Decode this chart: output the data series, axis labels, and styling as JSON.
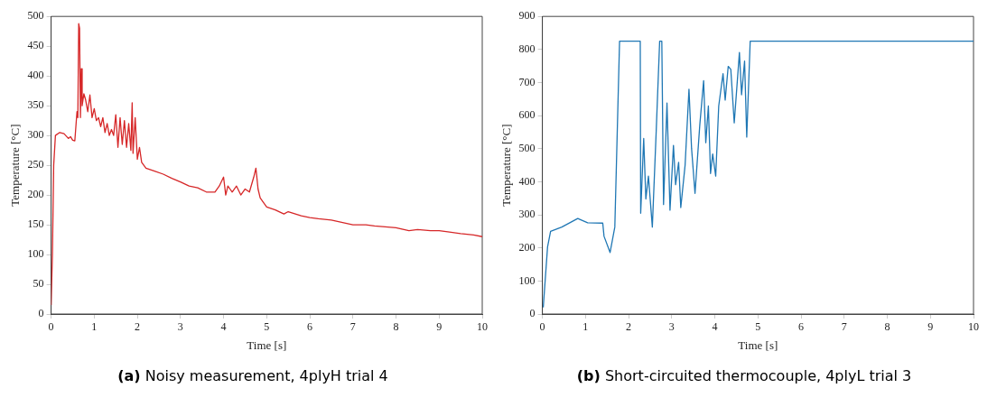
{
  "chart_data": [
    {
      "type": "line",
      "title": "(a) Noisy measurement, 4plyH trial 4",
      "xlabel": "Time [s]",
      "ylabel": "Temperature [°C]",
      "xlim": [
        0,
        10
      ],
      "xticks": [
        0,
        1,
        2,
        3,
        4,
        5,
        6,
        7,
        8,
        9,
        10
      ],
      "ylim": [
        0,
        500
      ],
      "yticks": [
        0,
        50,
        100,
        150,
        200,
        250,
        300,
        350,
        400,
        450,
        500
      ],
      "grid": false,
      "legend": false,
      "series": [
        {
          "color": "#d62728",
          "x": [
            0,
            0.03,
            0.06,
            0.1,
            0.2,
            0.3,
            0.4,
            0.45,
            0.5,
            0.55,
            0.6,
            0.62,
            0.64,
            0.66,
            0.68,
            0.7,
            0.72,
            0.76,
            0.8,
            0.85,
            0.9,
            0.95,
            1.0,
            1.05,
            1.1,
            1.15,
            1.2,
            1.25,
            1.3,
            1.35,
            1.4,
            1.45,
            1.5,
            1.55,
            1.6,
            1.65,
            1.7,
            1.75,
            1.8,
            1.85,
            1.88,
            1.9,
            1.95,
            2.0,
            2.05,
            2.1,
            2.2,
            2.4,
            2.6,
            2.8,
            3.0,
            3.2,
            3.4,
            3.6,
            3.8,
            3.9,
            4.0,
            4.05,
            4.1,
            4.2,
            4.3,
            4.4,
            4.5,
            4.6,
            4.7,
            4.75,
            4.8,
            4.85,
            5.0,
            5.2,
            5.4,
            5.5,
            5.8,
            6.0,
            6.2,
            6.5,
            7.0,
            7.3,
            7.5,
            8.0,
            8.3,
            8.5,
            8.8,
            9.0,
            9.2,
            9.5,
            9.8,
            10
          ],
          "values": [
            15,
            100,
            250,
            300,
            305,
            303,
            295,
            298,
            292,
            291,
            340,
            330,
            488,
            480,
            330,
            412,
            350,
            370,
            360,
            340,
            368,
            330,
            345,
            325,
            330,
            315,
            330,
            305,
            320,
            300,
            310,
            300,
            335,
            280,
            330,
            285,
            325,
            280,
            320,
            275,
            355,
            270,
            330,
            260,
            280,
            255,
            245,
            240,
            235,
            228,
            222,
            215,
            212,
            205,
            205,
            215,
            230,
            200,
            215,
            205,
            215,
            200,
            210,
            205,
            230,
            245,
            210,
            195,
            180,
            175,
            168,
            172,
            165,
            162,
            160,
            158,
            150,
            150,
            148,
            145,
            140,
            142,
            140,
            140,
            138,
            135,
            133,
            130
          ]
        }
      ]
    },
    {
      "type": "line",
      "title": "(b) Short-circuited thermocouple, 4plyL trial 3",
      "xlabel": "Time [s]",
      "ylabel": "Temperature [°C]",
      "xlim": [
        0,
        10
      ],
      "xticks": [
        0,
        1,
        2,
        3,
        4,
        5,
        6,
        7,
        8,
        9,
        10
      ],
      "ylim": [
        0,
        900
      ],
      "yticks": [
        0,
        100,
        200,
        300,
        400,
        500,
        600,
        700,
        800,
        900
      ],
      "grid": false,
      "legend": false,
      "series": [
        {
          "color": "#1f77b4",
          "x": [
            0.02,
            0.12,
            0.19,
            0.45,
            0.82,
            1.05,
            1.4,
            1.43,
            1.57,
            1.68,
            1.79,
            2.27,
            2.28,
            2.35,
            2.4,
            2.46,
            2.55,
            2.64,
            2.72,
            2.77,
            2.81,
            2.89,
            2.96,
            3.04,
            3.09,
            3.16,
            3.21,
            3.31,
            3.4,
            3.46,
            3.54,
            3.65,
            3.74,
            3.79,
            3.85,
            3.9,
            3.95,
            4.02,
            4.09,
            4.19,
            4.24,
            4.31,
            4.37,
            4.45,
            4.57,
            4.62,
            4.69,
            4.74,
            4.82,
            10
          ],
          "values": [
            20,
            203,
            250,
            263,
            289,
            276,
            275,
            235,
            186,
            263,
            825,
            825,
            305,
            531,
            348,
            417,
            263,
            553,
            825,
            825,
            331,
            638,
            314,
            510,
            391,
            459,
            322,
            450,
            680,
            501,
            365,
            570,
            706,
            518,
            629,
            425,
            484,
            417,
            629,
            727,
            647,
            749,
            740,
            578,
            791,
            663,
            765,
            535,
            825,
            825
          ]
        }
      ]
    }
  ]
}
